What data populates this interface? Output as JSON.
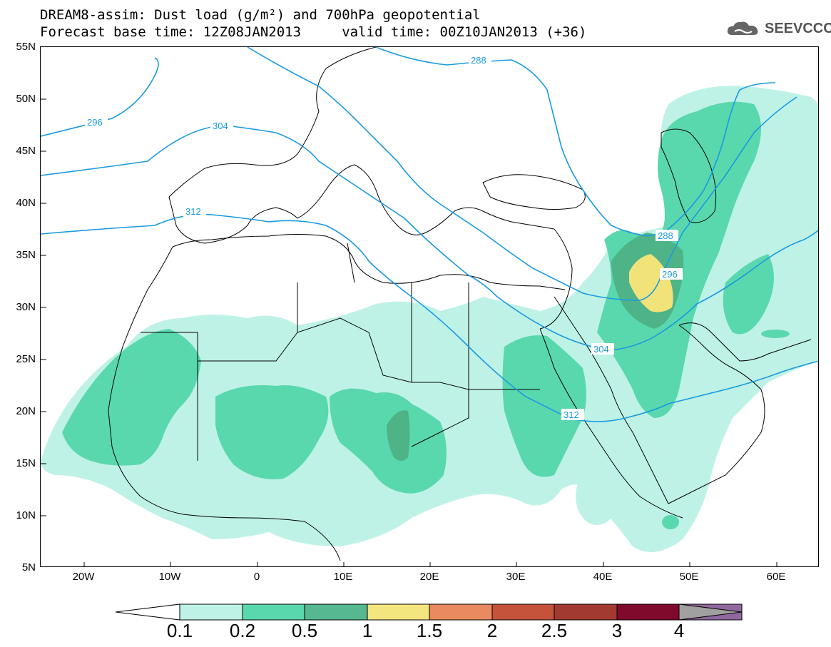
{
  "title": {
    "line1": "DREAM8-assim: Dust load (g/m²) and 700hPa geopotential",
    "line2": "Forecast base time: 12Z08JAN2013     valid time: 00Z10JAN2013 (+36)"
  },
  "logo": {
    "text": "SEEVCCC",
    "icon": "cloud-icon"
  },
  "map": {
    "lat_labels": [
      "55N",
      "50N",
      "45N",
      "40N",
      "35N",
      "30N",
      "25N",
      "20N",
      "15N",
      "10N",
      "5N"
    ],
    "lon_labels": [
      "20W",
      "10W",
      "0",
      "10E",
      "20E",
      "30E",
      "40E",
      "50E",
      "60E"
    ],
    "contour_labels": [
      {
        "text": "288"
      },
      {
        "text": "296"
      },
      {
        "text": "304"
      },
      {
        "text": "312"
      },
      {
        "text": "288"
      },
      {
        "text": "296"
      },
      {
        "text": "304"
      },
      {
        "text": "312"
      }
    ],
    "colors": {
      "contour": "#1a9ae0",
      "level_01": "#bff2e6",
      "level_02": "#5ad8ad",
      "level_05": "#4fb388",
      "level_10": "#f2e27a",
      "coast": "#000000"
    }
  },
  "colorbar": {
    "labels": [
      "0.1",
      "0.2",
      "0.5",
      "1",
      "1.5",
      "2",
      "2.5",
      "3",
      "4"
    ],
    "colors": [
      "#bff2e6",
      "#5ad8ad",
      "#55b890",
      "#f4e67f",
      "#e98a60",
      "#c5523a",
      "#a33a32",
      "#7f0a2c",
      "#9068a0",
      "#a0a0a0"
    ]
  }
}
